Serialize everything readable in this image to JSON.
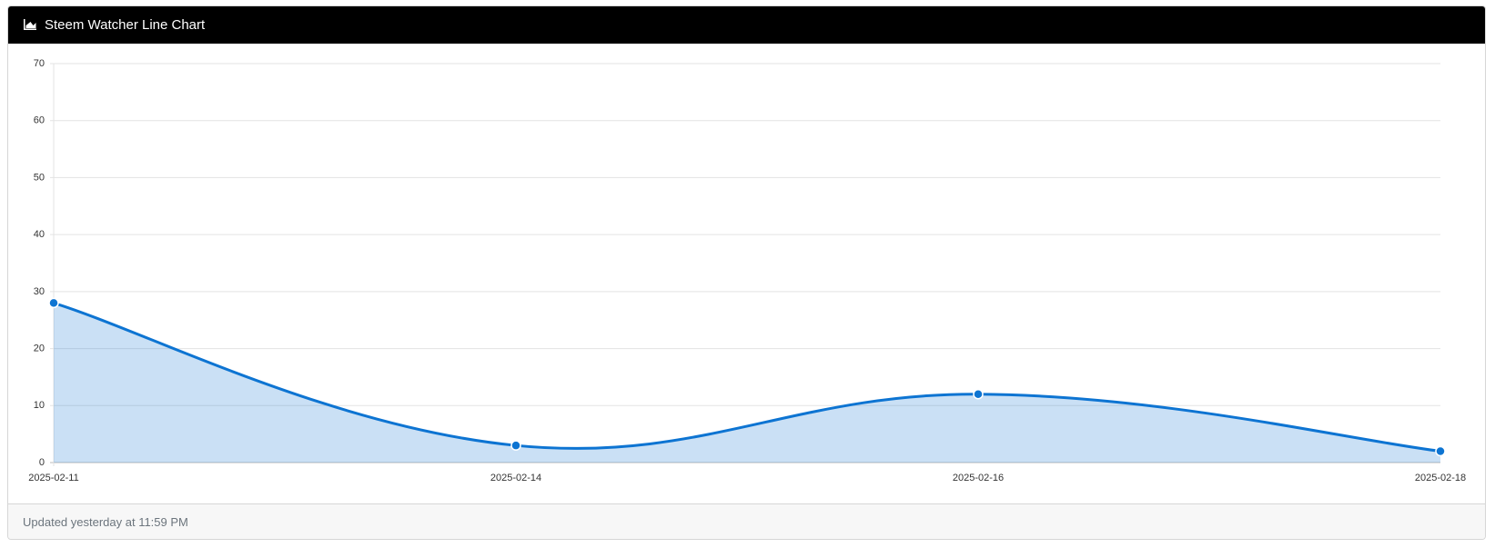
{
  "header": {
    "title": "Steem Watcher Line Chart"
  },
  "chart_data": {
    "type": "line",
    "categories": [
      "2025-02-11",
      "2025-02-14",
      "2025-02-16",
      "2025-02-18"
    ],
    "series": [
      {
        "color": "#0d74d2",
        "values": [
          28,
          3,
          12,
          2
        ]
      }
    ],
    "ylim": [
      0,
      70
    ],
    "yticks": [
      0,
      10,
      20,
      30,
      40,
      50,
      60,
      70
    ],
    "grid": true
  },
  "footer": {
    "text": "Updated yesterday at 11:59 PM"
  }
}
